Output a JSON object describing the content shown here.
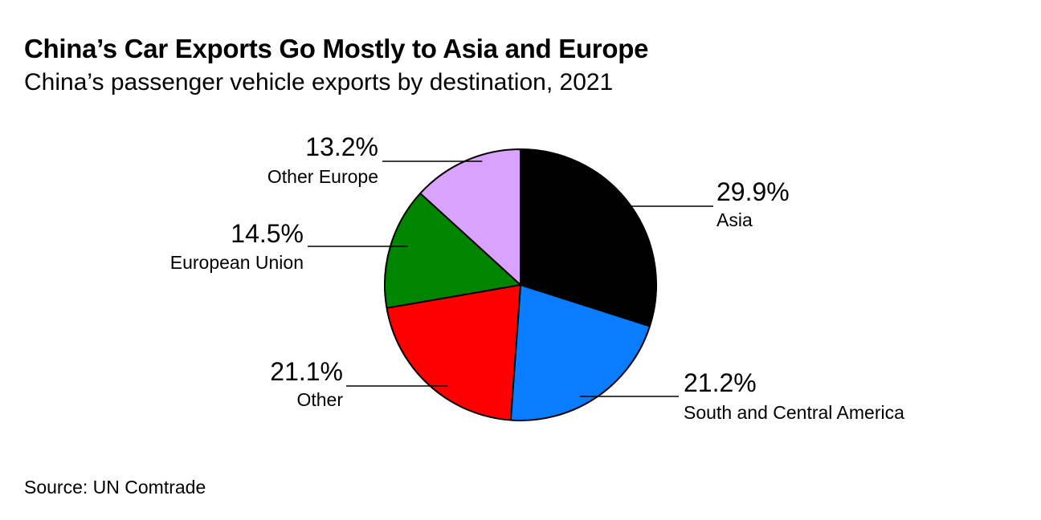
{
  "header": {
    "title": "China’s Car Exports Go Mostly to Asia and Europe",
    "subtitle": "China’s passenger vehicle exports by destination, 2021"
  },
  "footer": {
    "source": "Source: UN Comtrade"
  },
  "chart_data": {
    "type": "pie",
    "title": "China’s Car Exports Go Mostly to Asia and Europe",
    "subtitle": "China’s passenger vehicle exports by destination, 2021",
    "unit": "%",
    "start_angle": "12 o'clock, clockwise",
    "slices": [
      {
        "name": "Asia",
        "value": 29.9,
        "label": "29.9%",
        "color": "#000000",
        "label_side": "right"
      },
      {
        "name": "South and Central America",
        "value": 21.2,
        "label": "21.2%",
        "color": "#0a7cff",
        "label_side": "right"
      },
      {
        "name": "Other",
        "value": 21.1,
        "label": "21.1%",
        "color": "#ff0000",
        "label_side": "left"
      },
      {
        "name": "European Union",
        "value": 14.5,
        "label": "14.5%",
        "color": "#008500",
        "label_side": "left"
      },
      {
        "name": "Other Europe",
        "value": 13.2,
        "label": "13.2%",
        "color": "#d9a2fd",
        "label_side": "left"
      }
    ],
    "source": "Source: UN Comtrade"
  }
}
